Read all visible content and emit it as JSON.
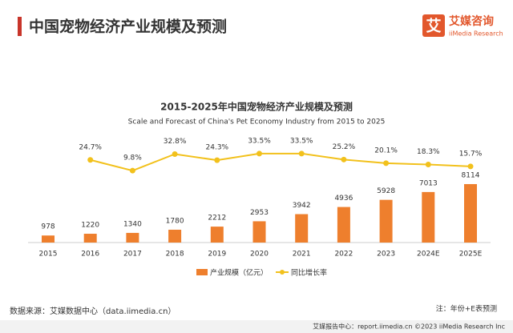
{
  "header": {
    "title": "中国宠物经济产业规模及预测",
    "logo_icon": "艾",
    "logo_name": "艾媒咨询",
    "logo_sub": "iiMedia Research"
  },
  "chart_data": {
    "type": "bar-line",
    "title": "2015-2025年中国宠物经济产业规模及预测",
    "subtitle": "Scale and Forecast of China's Pet Economy Industry from 2015 to 2025",
    "categories": [
      "2015",
      "2016",
      "2017",
      "2018",
      "2019",
      "2020",
      "2021",
      "2022",
      "2023",
      "2024E",
      "2025E"
    ],
    "series": [
      {
        "name": "产业规模（亿元）",
        "color": "#ee7f2d",
        "type": "bar",
        "values": [
          978,
          1220,
          1340,
          1780,
          2212,
          2953,
          3942,
          4936,
          5928,
          7013,
          8114
        ]
      },
      {
        "name": "同比增长率",
        "color": "#f2c11c",
        "type": "line",
        "axis": "y2",
        "values": [
          null,
          24.7,
          9.8,
          32.8,
          24.3,
          33.5,
          33.5,
          25.2,
          20.1,
          18.3,
          15.7
        ],
        "value_labels": [
          null,
          "24.7%",
          "9.8%",
          "32.8%",
          "24.3%",
          "33.5%",
          "33.5%",
          "25.2%",
          "20.1%",
          "18.3%",
          "15.7%"
        ]
      }
    ],
    "ylim": [
      0,
      17000
    ],
    "y2lim": [
      -90,
      80
    ],
    "legend": "bottom"
  },
  "footer": {
    "source": "数据来源：艾媒数据中心（data.iimedia.cn）",
    "note": "注：年份+E表预测",
    "credit": "艾媒报告中心：report.iimedia.cn  ©2023  iiMedia Research  Inc"
  }
}
